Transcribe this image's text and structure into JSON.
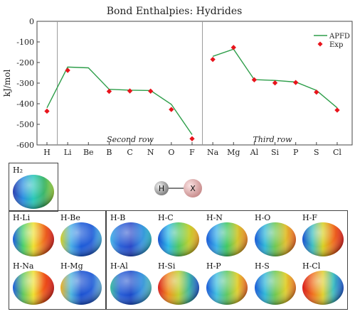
{
  "chart_data": {
    "type": "line",
    "title": "Bond Enthalpies: Hydrides",
    "ylabel": "kJ/mol",
    "xlabel": "",
    "ylim": [
      -600,
      0
    ],
    "yticks": [
      0,
      -100,
      -200,
      -300,
      -400,
      -500,
      -600
    ],
    "categories": [
      "H",
      "Li",
      "Be",
      "B",
      "C",
      "N",
      "O",
      "F",
      "Na",
      "Mg",
      "Al",
      "Si",
      "P",
      "S",
      "Cl"
    ],
    "series": [
      {
        "name": "APFD",
        "type": "line",
        "color": "#2e9e4a",
        "segments": [
          {
            "from": 0,
            "to": 7,
            "values": [
              -420,
              -222,
              -226,
              -330,
              -334,
              -336,
              -403,
              -550
            ]
          },
          {
            "from": 8,
            "to": 14,
            "values": [
              -170,
              -135,
              -283,
              -287,
              -295,
              -335,
              -420
            ]
          }
        ]
      },
      {
        "name": "Exp",
        "type": "scatter",
        "color": "#e8141c",
        "values": [
          -436,
          -238,
          null,
          -340,
          -338,
          -339,
          -428,
          -570,
          -185,
          -127,
          -284,
          -299,
          -297,
          -344,
          -431
        ]
      }
    ],
    "region_labels": [
      "Second row",
      "Third row"
    ],
    "legend_position": "top-right",
    "grid": false
  },
  "molecule": {
    "left": "H",
    "right": "X"
  },
  "tiles": [
    {
      "label": "H₂",
      "colors": [
        "#2e3fb0",
        "#2a8fe0",
        "#29c7b8",
        "#3bb56a",
        "#9bd03a"
      ]
    },
    {
      "label": "H-Li",
      "colors": [
        "#1a5be0",
        "#4ad06a",
        "#f0e030",
        "#f07020",
        "#d81818"
      ]
    },
    {
      "label": "H-Be",
      "colors": [
        "#d8d020",
        "#4ab0e8",
        "#1a5ad8",
        "#2a60d8",
        "#4ab8e8"
      ]
    },
    {
      "label": "H-B",
      "colors": [
        "#4ab8e8",
        "#2a60d8",
        "#2848c8",
        "#3a90e0",
        "#2ab8c8"
      ]
    },
    {
      "label": "H-C",
      "colors": [
        "#1850d0",
        "#2ab8e8",
        "#50c860",
        "#c0d030",
        "#f0a020"
      ]
    },
    {
      "label": "H-N",
      "colors": [
        "#1a5ad8",
        "#3ab0e8",
        "#40c860",
        "#d0c830",
        "#f08020"
      ]
    },
    {
      "label": "H-O",
      "colors": [
        "#1a5ad8",
        "#30b8d8",
        "#70c850",
        "#e0c030",
        "#f06020"
      ]
    },
    {
      "label": "H-F",
      "colors": [
        "#1850d0",
        "#40c0c0",
        "#d8d020",
        "#f07020",
        "#d81818"
      ]
    },
    {
      "label": "H-Na",
      "colors": [
        "#1a5be0",
        "#60c860",
        "#f0e030",
        "#f05818",
        "#d81818"
      ]
    },
    {
      "label": "H-Mg",
      "colors": [
        "#f0b020",
        "#50b8e0",
        "#1a50d0",
        "#2a60d8",
        "#6ab8e0"
      ]
    },
    {
      "label": "H-Al",
      "colors": [
        "#40c0a0",
        "#2a60d8",
        "#1a48c8",
        "#3a90e0",
        "#50c0c0"
      ]
    },
    {
      "label": "H-Si",
      "colors": [
        "#d82020",
        "#f09020",
        "#c0d030",
        "#40b8a0",
        "#1a50d0"
      ]
    },
    {
      "label": "H-P",
      "colors": [
        "#1a5ad8",
        "#40c0e0",
        "#60c860",
        "#e0d030",
        "#f06020"
      ]
    },
    {
      "label": "H-S",
      "colors": [
        "#1a5ad8",
        "#30b8d8",
        "#70c850",
        "#e0d030",
        "#f07020"
      ]
    },
    {
      "label": "H-Cl",
      "colors": [
        "#d81818",
        "#f07020",
        "#e0d030",
        "#40c0c0",
        "#1a50d0"
      ]
    }
  ]
}
